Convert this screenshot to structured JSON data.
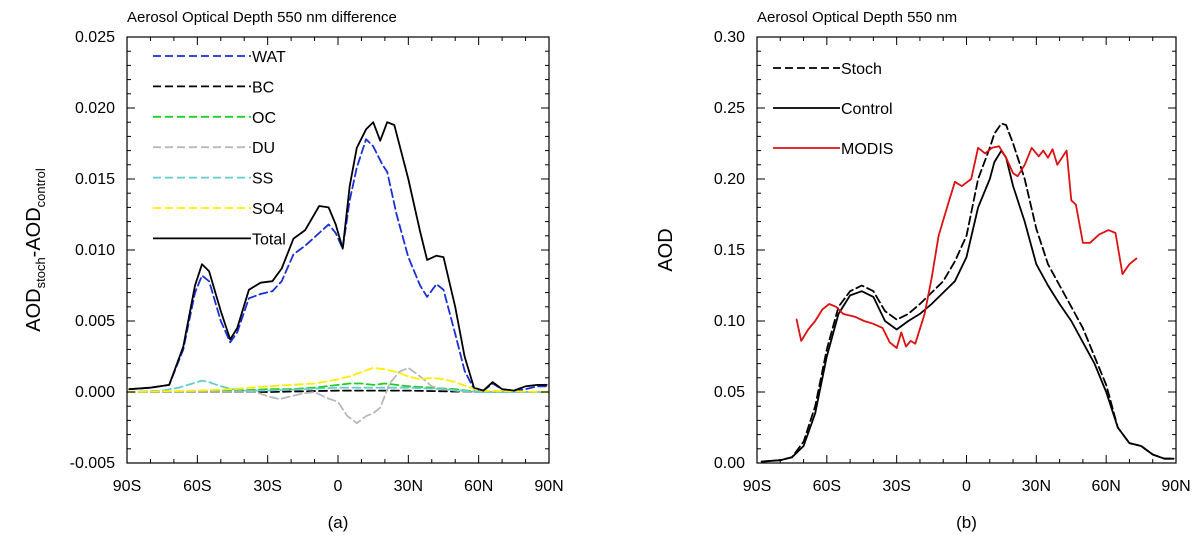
{
  "chart_data": [
    {
      "type": "line",
      "title": "Aerosol Optical Depth 550 nm difference",
      "panel_label": "(a)",
      "ylabel": {
        "base1": "AOD",
        "sub1": "stoch",
        "mid": "-AOD",
        "sub2": "control"
      },
      "xlabel": "",
      "xlim": [
        -90,
        90
      ],
      "ylim": [
        -0.005,
        0.025
      ],
      "x_ticks": [
        -90,
        -60,
        -30,
        0,
        30,
        60,
        90
      ],
      "x_tick_labels": [
        "90S",
        "60S",
        "30S",
        "0",
        "30N",
        "60N",
        "90N"
      ],
      "y_ticks": [
        -0.005,
        0.0,
        0.005,
        0.01,
        0.015,
        0.02,
        0.025
      ],
      "y_tick_labels": [
        "-0.005",
        "0.000",
        "0.005",
        "0.010",
        "0.015",
        "0.020",
        "0.025"
      ],
      "legend_position": "top-left",
      "grid": false,
      "series": [
        {
          "name": "WAT",
          "color": "#1a2fd8",
          "dash": "dashed",
          "x": [
            -89,
            -80,
            -72,
            -66,
            -61,
            -58,
            -55,
            -50,
            -46,
            -43,
            -38,
            -33,
            -28,
            -24,
            -19,
            -14,
            -8,
            -4,
            -1,
            2,
            5,
            8,
            12,
            15,
            19,
            21,
            25,
            30,
            35,
            38,
            42,
            45,
            50,
            54,
            58,
            62,
            66,
            70,
            75,
            80,
            85,
            89
          ],
          "y": [
            0.0002,
            0.0003,
            0.0005,
            0.003,
            0.007,
            0.0082,
            0.0078,
            0.005,
            0.0035,
            0.0042,
            0.0066,
            0.0069,
            0.0071,
            0.0078,
            0.0097,
            0.0103,
            0.0112,
            0.0118,
            0.0112,
            0.0101,
            0.0135,
            0.0158,
            0.0178,
            0.0173,
            0.016,
            0.0155,
            0.0125,
            0.0095,
            0.0075,
            0.0067,
            0.0076,
            0.0072,
            0.0041,
            0.0015,
            0.0002,
            0.0001,
            0.0006,
            0.0002,
            0.0001,
            0.0002,
            0.0004,
            0.0004
          ]
        },
        {
          "name": "BC",
          "color": "#000000",
          "dash": "dashed",
          "x": [
            -90,
            -60,
            -30,
            0,
            15,
            30,
            60,
            90
          ],
          "y": [
            0.0,
            0.0,
            0.0,
            0.0001,
            0.0001,
            0.0001,
            0.0,
            0.0
          ]
        },
        {
          "name": "OC",
          "color": "#22cc22",
          "dash": "dashed",
          "x": [
            -90,
            -65,
            -45,
            -30,
            -20,
            -10,
            0,
            5,
            10,
            15,
            20,
            30,
            40,
            50,
            60,
            70,
            90
          ],
          "y": [
            0.0,
            0.0,
            0.0001,
            0.0002,
            0.0002,
            0.0003,
            0.0005,
            0.0006,
            0.0006,
            0.0005,
            0.0006,
            0.0004,
            0.0003,
            0.0002,
            0.0,
            0.0,
            0.0
          ]
        },
        {
          "name": "DU",
          "color": "#b8b8b8",
          "dash": "dashed",
          "x": [
            -90,
            -45,
            -35,
            -30,
            -25,
            -20,
            -15,
            -10,
            -5,
            0,
            4,
            8,
            12,
            15,
            18,
            22,
            26,
            30,
            35,
            40,
            45,
            50,
            55,
            60,
            90
          ],
          "y": [
            0.0,
            0.0,
            0.0,
            -0.0003,
            -0.0005,
            -0.0003,
            -0.0001,
            0.0,
            -0.0004,
            -0.0007,
            -0.0017,
            -0.0022,
            -0.0017,
            -0.0015,
            -0.0011,
            0.0006,
            0.0014,
            0.0017,
            0.0011,
            0.0004,
            0.0002,
            0.0001,
            0.0,
            0.0,
            0.0
          ]
        },
        {
          "name": "SS",
          "color": "#66cccc",
          "dash": "dashed",
          "x": [
            -90,
            -75,
            -68,
            -62,
            -58,
            -55,
            -50,
            -45,
            -40,
            -30,
            -15,
            0,
            30,
            45,
            60,
            90
          ],
          "y": [
            0.0,
            0.0001,
            0.0003,
            0.0006,
            0.0008,
            0.0007,
            0.0004,
            0.0002,
            0.0001,
            0.0001,
            0.0002,
            0.0003,
            0.0003,
            0.0002,
            0.0,
            0.0
          ]
        },
        {
          "name": "SO4",
          "color": "#ffee00",
          "dash": "dashed",
          "x": [
            -90,
            -60,
            -45,
            -38,
            -30,
            -20,
            -10,
            -3,
            0,
            5,
            10,
            15,
            20,
            25,
            30,
            35,
            40,
            45,
            50,
            55,
            60,
            90
          ],
          "y": [
            0.0,
            0.0001,
            0.0002,
            0.0003,
            0.0004,
            0.0005,
            0.0006,
            0.0008,
            0.0009,
            0.0011,
            0.0014,
            0.0017,
            0.0016,
            0.0014,
            0.0011,
            0.0009,
            0.001,
            0.0009,
            0.0007,
            0.0004,
            0.0001,
            0.0
          ]
        },
        {
          "name": "Total",
          "color": "#000000",
          "dash": "solid",
          "x": [
            -89,
            -80,
            -72,
            -66,
            -61,
            -58,
            -55,
            -50,
            -46,
            -43,
            -38,
            -33,
            -28,
            -24,
            -19,
            -14,
            -8,
            -4,
            -1,
            2,
            5,
            8,
            12,
            15,
            18,
            21,
            24,
            30,
            35,
            38,
            42,
            45,
            50,
            54,
            58,
            62,
            66,
            70,
            75,
            80,
            85,
            89
          ],
          "y": [
            0.0002,
            0.0003,
            0.0005,
            0.0032,
            0.0075,
            0.009,
            0.0085,
            0.0057,
            0.0037,
            0.0045,
            0.0072,
            0.0077,
            0.0078,
            0.0087,
            0.0108,
            0.0114,
            0.0131,
            0.013,
            0.0118,
            0.0101,
            0.0145,
            0.0172,
            0.0185,
            0.019,
            0.0177,
            0.019,
            0.0188,
            0.015,
            0.0113,
            0.0093,
            0.0096,
            0.0095,
            0.006,
            0.0025,
            0.0003,
            0.0001,
            0.0007,
            0.0002,
            0.0001,
            0.0004,
            0.0005,
            0.0005
          ]
        }
      ]
    },
    {
      "type": "line",
      "title": "Aerosol Optical Depth 550 nm",
      "panel_label": "(b)",
      "ylabel": "AOD",
      "xlabel": "",
      "xlim": [
        -90,
        90
      ],
      "ylim": [
        0.0,
        0.3
      ],
      "x_ticks": [
        -90,
        -60,
        -30,
        0,
        30,
        60,
        90
      ],
      "x_tick_labels": [
        "90S",
        "60S",
        "30S",
        "0",
        "30N",
        "60N",
        "90N"
      ],
      "y_ticks": [
        0.0,
        0.05,
        0.1,
        0.15,
        0.2,
        0.25,
        0.3
      ],
      "y_tick_labels": [
        "0.00",
        "0.05",
        "0.10",
        "0.15",
        "0.20",
        "0.25",
        "0.30"
      ],
      "legend_position": "top-left",
      "grid": false,
      "series": [
        {
          "name": "Stoch",
          "color": "#000000",
          "dash": "dashed",
          "x": [
            -88,
            -80,
            -75,
            -70,
            -65,
            -60,
            -55,
            -50,
            -45,
            -40,
            -35,
            -30,
            -25,
            -20,
            -15,
            -10,
            -5,
            0,
            5,
            10,
            12,
            15,
            17,
            20,
            25,
            30,
            35,
            40,
            45,
            50,
            55,
            60,
            65,
            70,
            75,
            80,
            85,
            89
          ],
          "y": [
            0.001,
            0.002,
            0.004,
            0.015,
            0.04,
            0.08,
            0.11,
            0.121,
            0.125,
            0.121,
            0.107,
            0.101,
            0.105,
            0.112,
            0.12,
            0.128,
            0.142,
            0.16,
            0.2,
            0.222,
            0.232,
            0.239,
            0.238,
            0.225,
            0.2,
            0.165,
            0.14,
            0.125,
            0.11,
            0.095,
            0.075,
            0.055,
            0.025,
            0.014,
            0.012,
            0.006,
            0.003,
            0.003
          ]
        },
        {
          "name": "Control",
          "color": "#000000",
          "dash": "solid",
          "x": [
            -88,
            -80,
            -75,
            -70,
            -65,
            -60,
            -55,
            -50,
            -45,
            -40,
            -35,
            -30,
            -25,
            -20,
            -15,
            -10,
            -5,
            0,
            5,
            10,
            12,
            15,
            17,
            20,
            25,
            30,
            35,
            40,
            45,
            50,
            55,
            60,
            65,
            70,
            75,
            80,
            85,
            89
          ],
          "y": [
            0.001,
            0.002,
            0.004,
            0.012,
            0.035,
            0.075,
            0.105,
            0.118,
            0.121,
            0.117,
            0.1,
            0.094,
            0.1,
            0.105,
            0.112,
            0.12,
            0.128,
            0.145,
            0.18,
            0.2,
            0.212,
            0.22,
            0.215,
            0.195,
            0.17,
            0.14,
            0.125,
            0.112,
            0.1,
            0.085,
            0.07,
            0.05,
            0.025,
            0.014,
            0.012,
            0.006,
            0.003,
            0.003
          ]
        },
        {
          "name": "MODIS",
          "color": "#dd1111",
          "dash": "solid",
          "x": [
            -73,
            -71,
            -68,
            -65,
            -62,
            -59,
            -56,
            -53,
            -48,
            -44,
            -40,
            -36,
            -33,
            -30,
            -28,
            -26,
            -24,
            -22,
            -18,
            -15,
            -12,
            -8,
            -5,
            -2,
            2,
            5,
            8,
            11,
            14,
            17,
            20,
            22,
            25,
            28,
            31,
            33,
            35,
            37,
            39,
            41,
            43,
            45,
            47,
            50,
            53,
            57,
            61,
            64,
            67,
            70,
            73
          ],
          "y": [
            0.101,
            0.086,
            0.094,
            0.1,
            0.108,
            0.112,
            0.11,
            0.105,
            0.103,
            0.1,
            0.098,
            0.095,
            0.085,
            0.081,
            0.092,
            0.082,
            0.086,
            0.084,
            0.105,
            0.13,
            0.16,
            0.182,
            0.198,
            0.195,
            0.2,
            0.222,
            0.218,
            0.222,
            0.223,
            0.215,
            0.204,
            0.202,
            0.21,
            0.222,
            0.216,
            0.22,
            0.215,
            0.221,
            0.21,
            0.215,
            0.22,
            0.185,
            0.182,
            0.155,
            0.155,
            0.161,
            0.164,
            0.162,
            0.133,
            0.14,
            0.144
          ]
        }
      ]
    }
  ]
}
